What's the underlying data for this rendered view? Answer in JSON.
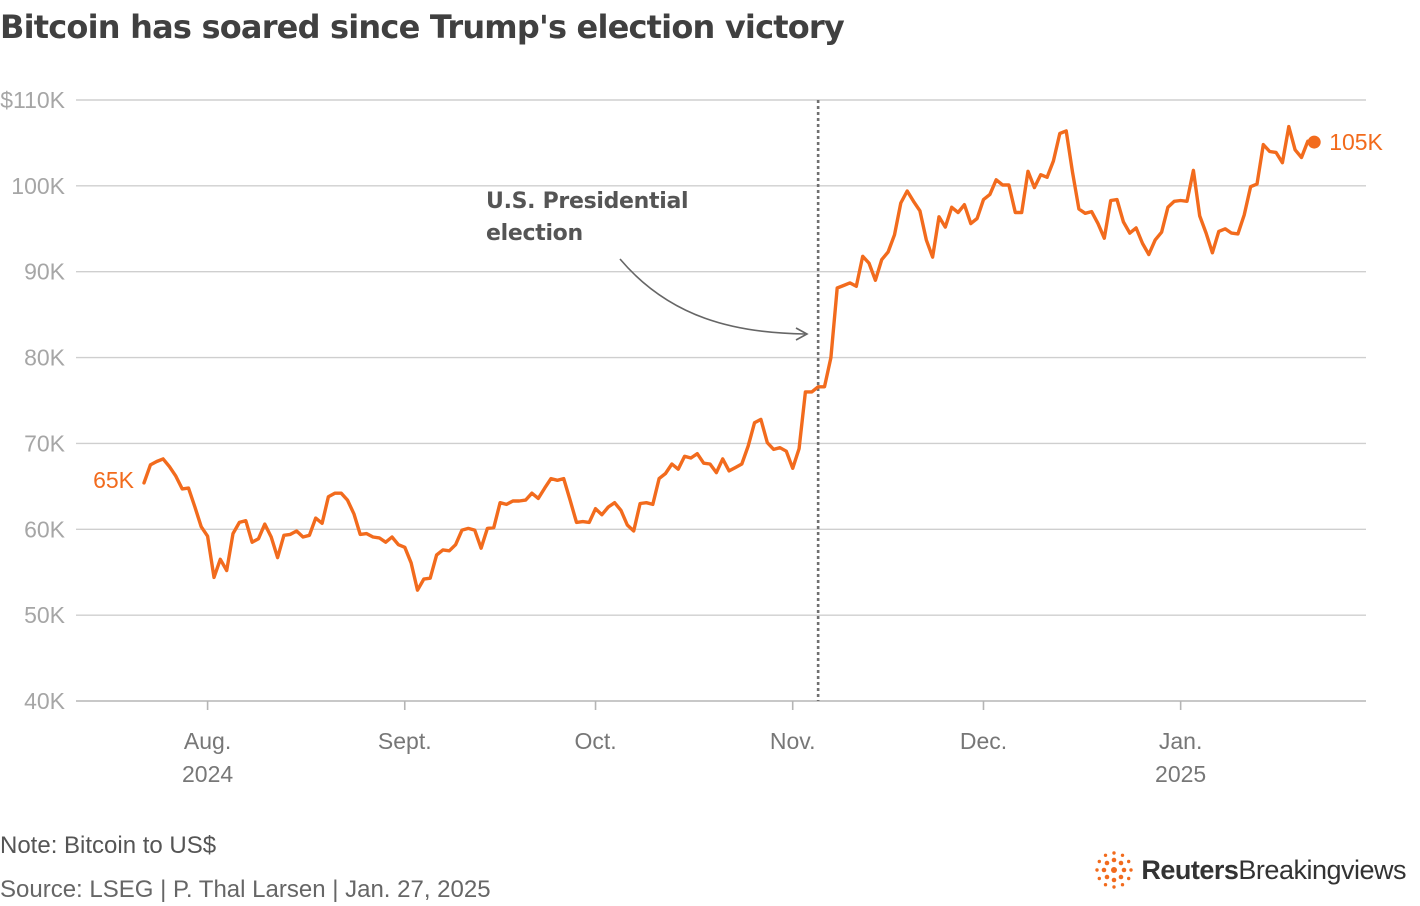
{
  "title": "Bitcoin has soared since Trump's election victory",
  "note": "Note: Bitcoin to US$",
  "source": "Source: LSEG | P. Thal Larsen | Jan. 27, 2025",
  "logo": {
    "brand": "Reuters",
    "sub": "Breakingviews",
    "icon": "reuters-dot-ring-icon"
  },
  "colors": {
    "line": "#F26B1D",
    "text": "#404040",
    "grid": "#cfcfcf",
    "tick_label": "#a6a6a6",
    "annotation": "#555555"
  },
  "chart_data": {
    "type": "line",
    "title": "Bitcoin has soared since Trump's election victory",
    "xlabel": "",
    "ylabel": "",
    "units": "US$",
    "ylim": [
      40000,
      110000
    ],
    "y_ticks": [
      {
        "value": 110000,
        "label": "$110K"
      },
      {
        "value": 100000,
        "label": "100K"
      },
      {
        "value": 90000,
        "label": "90K"
      },
      {
        "value": 80000,
        "label": "80K"
      },
      {
        "value": 70000,
        "label": "70K"
      },
      {
        "value": 60000,
        "label": "60K"
      },
      {
        "value": 50000,
        "label": "50K"
      },
      {
        "value": 40000,
        "label": "40K"
      }
    ],
    "x_start": "2024-07-22",
    "x_end": "2025-01-27",
    "x_ticks": [
      {
        "date": "2024-08-01",
        "label": "Aug.",
        "sublabel": "2024"
      },
      {
        "date": "2024-09-01",
        "label": "Sept.",
        "sublabel": ""
      },
      {
        "date": "2024-10-01",
        "label": "Oct.",
        "sublabel": ""
      },
      {
        "date": "2024-11-01",
        "label": "Nov.",
        "sublabel": ""
      },
      {
        "date": "2024-12-01",
        "label": "Dec.",
        "sublabel": ""
      },
      {
        "date": "2025-01-01",
        "label": "Jan.",
        "sublabel": "2025"
      }
    ],
    "grid": true,
    "series": [
      {
        "name": "Bitcoin to US$",
        "start_date": "2024-07-22",
        "interval_days": 1,
        "values": [
          65400,
          67500,
          67900,
          68200,
          67300,
          66200,
          64700,
          64800,
          62600,
          60300,
          59200,
          54400,
          56500,
          55200,
          59500,
          60800,
          61000,
          58500,
          58900,
          60600,
          59100,
          56700,
          59300,
          59400,
          59800,
          59100,
          59300,
          61300,
          60700,
          63800,
          64200,
          64200,
          63400,
          61800,
          59400,
          59500,
          59100,
          59000,
          58500,
          59100,
          58200,
          57900,
          56100,
          52900,
          54200,
          54300,
          57000,
          57600,
          57500,
          58200,
          59900,
          60100,
          59900,
          57800,
          60100,
          60200,
          63100,
          62900,
          63300,
          63300,
          63400,
          64200,
          63600,
          64800,
          65900,
          65700,
          65900,
          63400,
          60800,
          60900,
          60800,
          62400,
          61700,
          62600,
          63100,
          62200,
          60500,
          59800,
          63000,
          63100,
          62900,
          65900,
          66500,
          67600,
          67000,
          68500,
          68300,
          68800,
          67700,
          67600,
          66600,
          68200,
          66800,
          67200,
          67600,
          69700,
          72400,
          72800,
          70100,
          69300,
          69500,
          69100,
          67100,
          69400,
          76000,
          76000,
          76600,
          76600,
          80000,
          88100,
          88400,
          88700,
          88300,
          91800,
          91000,
          89000,
          91400,
          92300,
          94300,
          98000,
          99400,
          98200,
          97100,
          93700,
          91700,
          96400,
          95200,
          97500,
          96900,
          97800,
          95600,
          96200,
          98400,
          99000,
          100700,
          100100,
          100100,
          96900,
          96900,
          101700,
          99800,
          101300,
          101000,
          102900,
          106100,
          106400,
          101600,
          97300,
          96800,
          97000,
          95600,
          93900,
          98300,
          98400,
          95800,
          94500,
          95100,
          93300,
          92000,
          93700,
          94600,
          97500,
          98200,
          98300,
          98200,
          101800,
          96500,
          94500,
          92200,
          94700,
          95000,
          94500,
          94400,
          96600,
          99900,
          100200,
          104800,
          104000,
          103900,
          102700,
          106900,
          104200,
          103300,
          105200,
          105100
        ]
      }
    ],
    "annotations": [
      {
        "type": "vline",
        "date": "2024-11-05",
        "label_lines": [
          "U.S. Presidential",
          "election"
        ]
      },
      {
        "type": "start_label",
        "text": "65K"
      },
      {
        "type": "end_label",
        "text": "105K"
      }
    ]
  }
}
